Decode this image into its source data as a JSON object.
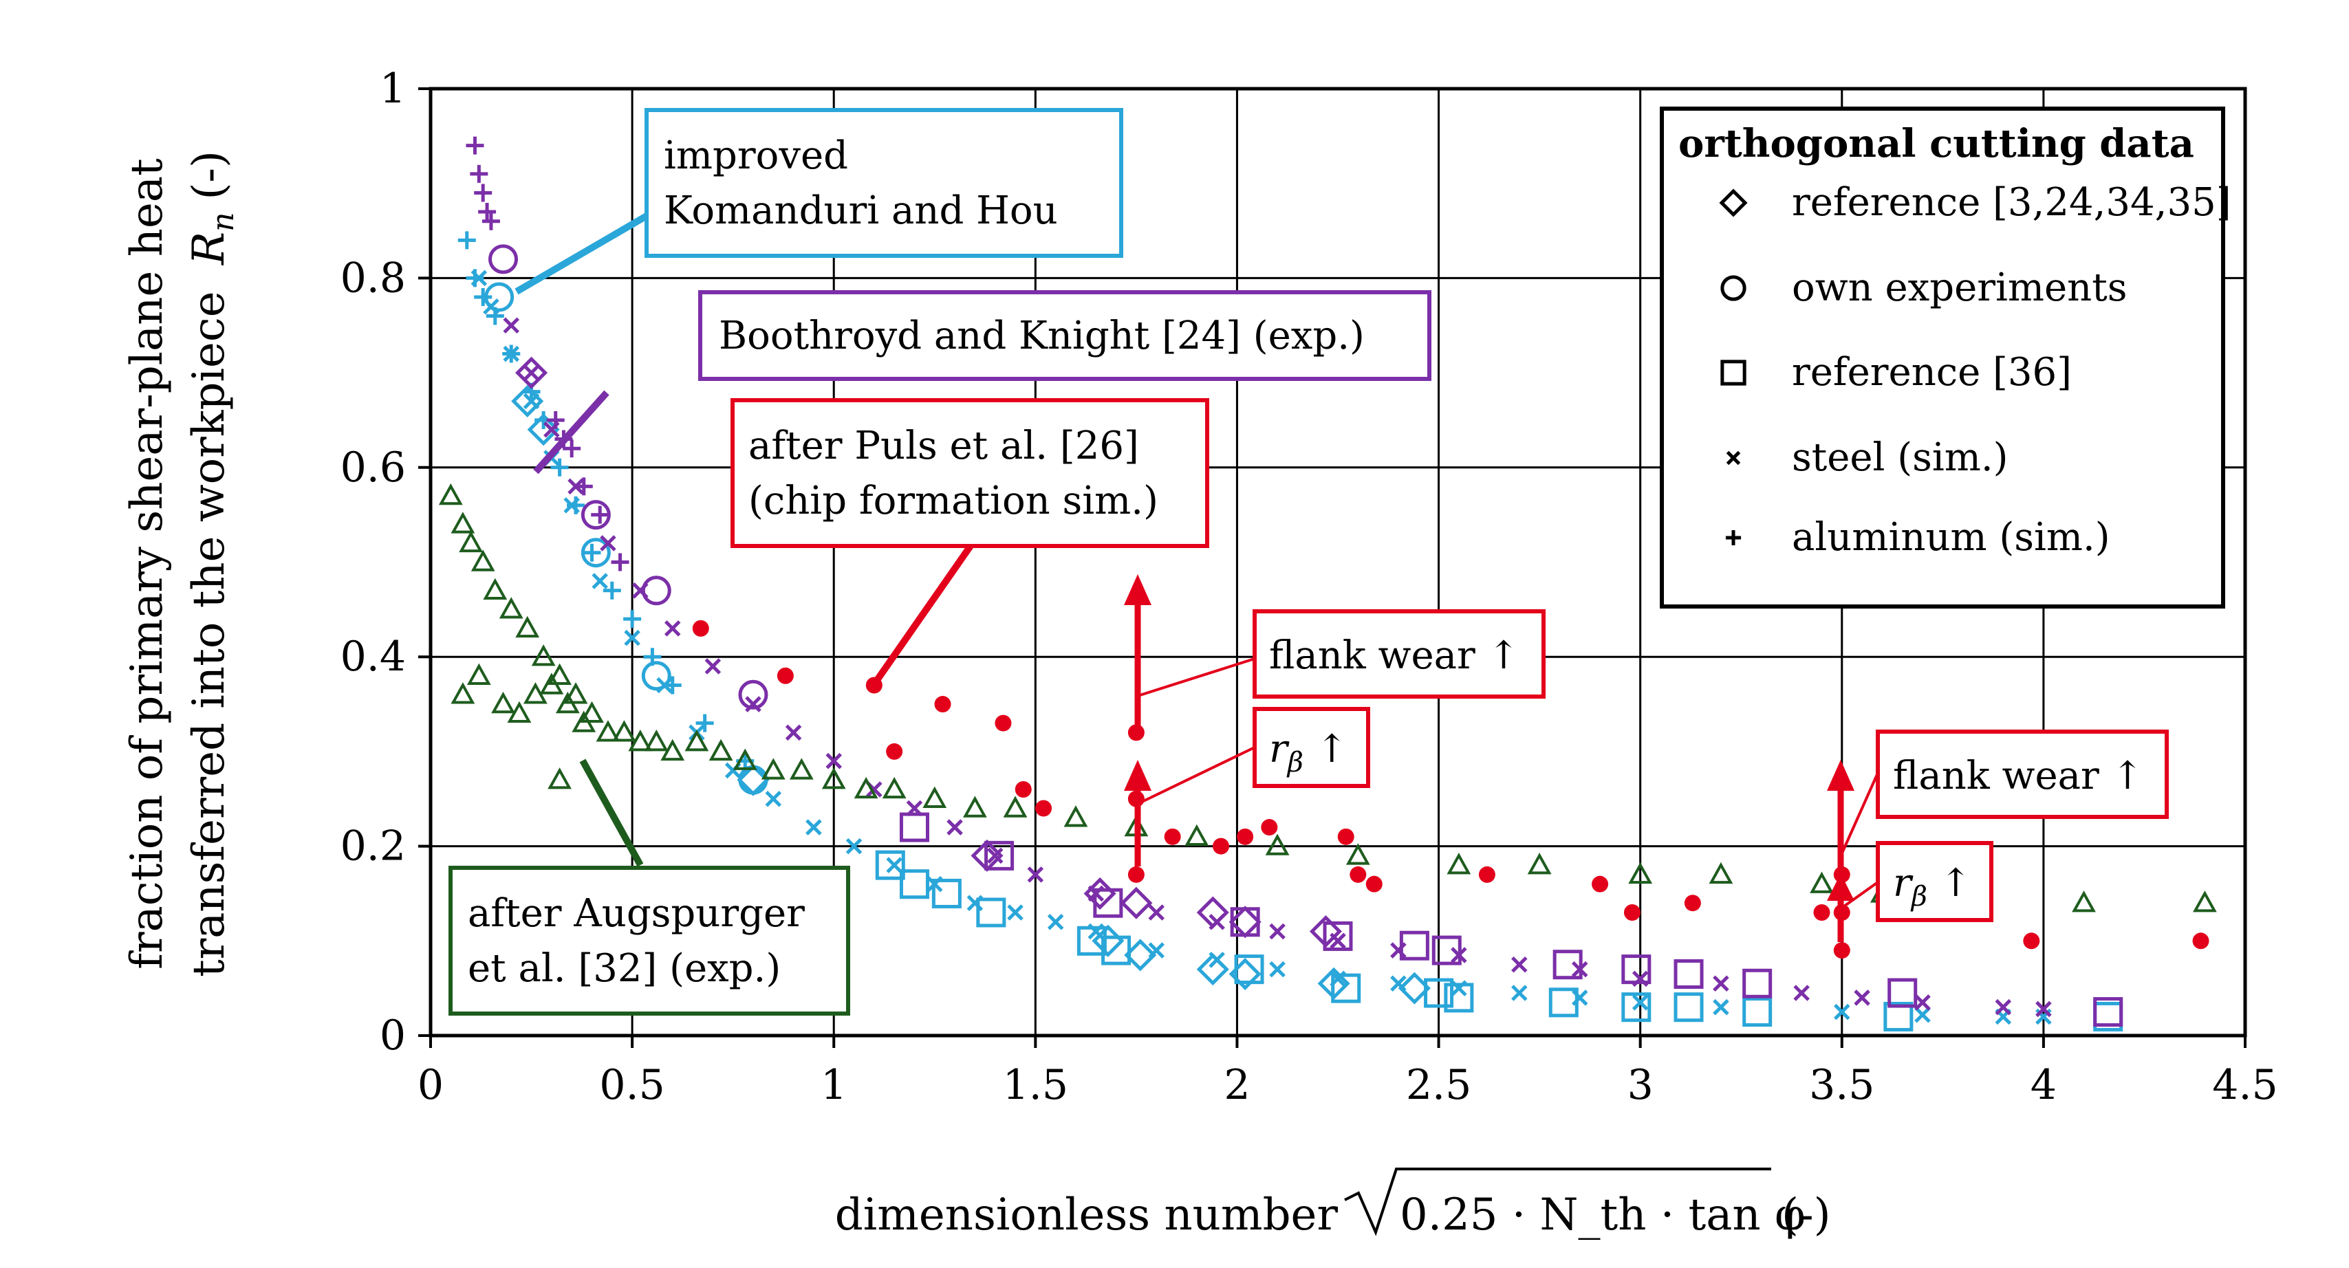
{
  "chart_data": {
    "type": "scatter",
    "xlabel": "dimensionless number",
    "xlabel_suffix": "(-)",
    "xlabel_formula": "0.25 · N_th · tan φ",
    "ylabel_line1": "fraction of primary shear-plane heat",
    "ylabel_line2": "transferred into the workpiece",
    "ylabel_sym": "R",
    "ylabel_sub": "n",
    "ylabel_unit": "(-)",
    "xlim": [
      0,
      4.5
    ],
    "ylim": [
      0,
      1
    ],
    "x_ticks": [
      0,
      0.5,
      1,
      1.5,
      2,
      2.5,
      3,
      3.5,
      4,
      4.5
    ],
    "y_ticks": [
      0,
      0.2,
      0.4,
      0.6,
      0.8,
      1
    ],
    "x_tick_labels": [
      "0",
      "0.5",
      "1",
      "1.5",
      "2",
      "2.5",
      "3",
      "3.5",
      "4",
      "4.5"
    ],
    "y_tick_labels": [
      "0",
      "0.2",
      "0.4",
      "0.6",
      "0.8",
      "1"
    ],
    "grid": true,
    "colors": {
      "blue": "#2aa6d9",
      "purple": "#7b2fa8",
      "red": "#e3001b",
      "green": "#1e5c1e"
    },
    "legend": {
      "title": "orthogonal cutting data",
      "position": "top-right",
      "entries": [
        {
          "marker": "diamond",
          "label": "reference [3,24,34,35]"
        },
        {
          "marker": "circle",
          "label": "own experiments"
        },
        {
          "marker": "square",
          "label": "reference [36]"
        },
        {
          "marker": "x",
          "label": "steel (sim.)"
        },
        {
          "marker": "plus",
          "label": "aluminum (sim.)"
        }
      ]
    },
    "annotations": {
      "komanduri": {
        "line1": "improved",
        "line2": "Komanduri and Hou"
      },
      "boothroyd": {
        "text": "Boothroyd and Knight [24] (exp.)"
      },
      "puls": {
        "line1": "after Puls et al. [26]",
        "line2": "(chip formation sim.)"
      },
      "augspurger": {
        "line1": "after Augspurger",
        "line2": "et al. [32] (exp.)"
      },
      "flank1": {
        "text": "flank wear ↑"
      },
      "r1": {
        "sym": "r",
        "sub": "β",
        "arrow": "↑"
      },
      "flank2": {
        "text": "flank wear ↑"
      },
      "r2": {
        "sym": "r",
        "sub": "β",
        "arrow": "↑"
      }
    },
    "series": [
      {
        "name": "improved Komanduri and Hou - steel (sim.)",
        "color": "blue",
        "marker": "x",
        "x": [
          0.12,
          0.15,
          0.2,
          0.25,
          0.3,
          0.35,
          0.42,
          0.5,
          0.58,
          0.66,
          0.75,
          0.85,
          0.95,
          1.05,
          1.15,
          1.25,
          1.35,
          1.45,
          1.55,
          1.65,
          1.8,
          1.95,
          2.1,
          2.25,
          2.4,
          2.55,
          2.7,
          2.85,
          3.0,
          3.2,
          3.5,
          3.7,
          3.9,
          4.0
        ],
        "y": [
          0.8,
          0.77,
          0.72,
          0.67,
          0.61,
          0.56,
          0.48,
          0.42,
          0.37,
          0.32,
          0.28,
          0.25,
          0.22,
          0.2,
          0.18,
          0.16,
          0.14,
          0.13,
          0.12,
          0.11,
          0.09,
          0.08,
          0.07,
          0.06,
          0.055,
          0.05,
          0.045,
          0.04,
          0.035,
          0.03,
          0.025,
          0.022,
          0.02,
          0.02
        ]
      },
      {
        "name": "improved Komanduri and Hou - aluminum (sim.)",
        "color": "blue",
        "marker": "plus",
        "x": [
          0.09,
          0.11,
          0.13,
          0.16,
          0.2,
          0.25,
          0.28,
          0.32,
          0.36,
          0.4,
          0.45,
          0.5,
          0.55,
          0.6,
          0.68,
          0.78
        ],
        "y": [
          0.84,
          0.8,
          0.78,
          0.76,
          0.72,
          0.68,
          0.65,
          0.6,
          0.56,
          0.51,
          0.47,
          0.44,
          0.4,
          0.37,
          0.33,
          0.29
        ]
      },
      {
        "name": "improved Komanduri and Hou - reference [3,24,34,35]",
        "color": "blue",
        "marker": "diamond",
        "x": [
          0.24,
          0.28,
          0.8,
          1.68,
          1.76,
          1.94,
          2.02,
          2.24,
          2.44
        ],
        "y": [
          0.67,
          0.64,
          0.27,
          0.1,
          0.085,
          0.07,
          0.065,
          0.055,
          0.05
        ]
      },
      {
        "name": "improved Komanduri and Hou - own experiments",
        "color": "blue",
        "marker": "circle",
        "x": [
          0.17,
          0.41,
          0.56,
          0.8
        ],
        "y": [
          0.78,
          0.51,
          0.38,
          0.27
        ]
      },
      {
        "name": "improved Komanduri and Hou - reference [36]",
        "color": "blue",
        "marker": "square",
        "x": [
          1.14,
          1.2,
          1.28,
          1.39,
          1.64,
          1.7,
          2.03,
          2.27,
          2.5,
          2.55,
          2.81,
          2.99,
          3.12,
          3.29,
          3.64,
          4.16
        ],
        "y": [
          0.18,
          0.16,
          0.15,
          0.13,
          0.1,
          0.09,
          0.07,
          0.05,
          0.045,
          0.04,
          0.035,
          0.03,
          0.03,
          0.025,
          0.02,
          0.02
        ]
      },
      {
        "name": "Boothroyd and Knight - steel (sim.)",
        "color": "purple",
        "marker": "x",
        "x": [
          0.2,
          0.25,
          0.3,
          0.36,
          0.44,
          0.52,
          0.6,
          0.7,
          0.8,
          0.9,
          1.0,
          1.1,
          1.2,
          1.3,
          1.4,
          1.5,
          1.65,
          1.8,
          1.95,
          2.1,
          2.25,
          2.4,
          2.55,
          2.7,
          2.85,
          3.0,
          3.2,
          3.4,
          3.55,
          3.7,
          3.9,
          4.0
        ],
        "y": [
          0.75,
          0.7,
          0.64,
          0.58,
          0.52,
          0.47,
          0.43,
          0.39,
          0.35,
          0.32,
          0.29,
          0.26,
          0.24,
          0.22,
          0.19,
          0.17,
          0.15,
          0.13,
          0.12,
          0.11,
          0.1,
          0.09,
          0.085,
          0.075,
          0.07,
          0.06,
          0.055,
          0.045,
          0.04,
          0.035,
          0.03,
          0.028
        ]
      },
      {
        "name": "Boothroyd and Knight - aluminum (sim.)",
        "color": "purple",
        "marker": "plus",
        "x": [
          0.11,
          0.12,
          0.13,
          0.14,
          0.15,
          0.31,
          0.33,
          0.35,
          0.38,
          0.42,
          0.47
        ],
        "y": [
          0.94,
          0.91,
          0.89,
          0.87,
          0.86,
          0.65,
          0.63,
          0.62,
          0.58,
          0.55,
          0.5
        ]
      },
      {
        "name": "Boothroyd and Knight - reference [3,24,34,35]",
        "color": "purple",
        "marker": "diamond",
        "x": [
          0.25,
          1.38,
          1.66,
          1.75,
          1.94,
          2.02,
          2.22
        ],
        "y": [
          0.7,
          0.19,
          0.15,
          0.14,
          0.13,
          0.12,
          0.11
        ]
      },
      {
        "name": "Boothroyd and Knight - own experiments",
        "color": "purple",
        "marker": "circle",
        "x": [
          0.18,
          0.41,
          0.56,
          0.8
        ],
        "y": [
          0.82,
          0.55,
          0.47,
          0.36
        ]
      },
      {
        "name": "Boothroyd and Knight - reference [36]",
        "color": "purple",
        "marker": "square",
        "x": [
          1.2,
          1.41,
          1.68,
          2.02,
          2.25,
          2.44,
          2.52,
          2.82,
          2.99,
          3.12,
          3.29,
          3.65,
          4.16
        ],
        "y": [
          0.22,
          0.19,
          0.14,
          0.12,
          0.105,
          0.095,
          0.09,
          0.075,
          0.07,
          0.065,
          0.055,
          0.045,
          0.025
        ]
      },
      {
        "name": "after Puls et al. [26] (chip formation sim.)",
        "color": "red",
        "marker": "dot",
        "x": [
          0.67,
          0.88,
          1.1,
          1.15,
          1.27,
          1.42,
          1.47,
          1.52,
          1.75,
          1.75,
          1.75,
          1.84,
          1.96,
          2.02,
          2.08,
          2.27,
          2.3,
          2.34,
          2.62,
          2.9,
          2.98,
          3.13,
          3.45,
          3.5,
          3.5,
          3.5,
          3.97,
          4.39
        ],
        "y": [
          0.43,
          0.38,
          0.37,
          0.3,
          0.35,
          0.33,
          0.26,
          0.24,
          0.32,
          0.25,
          0.17,
          0.21,
          0.2,
          0.21,
          0.22,
          0.21,
          0.17,
          0.16,
          0.17,
          0.16,
          0.13,
          0.14,
          0.13,
          0.17,
          0.13,
          0.09,
          0.1,
          0.1
        ]
      },
      {
        "name": "after Augspurger et al. [32] (exp.)",
        "color": "green",
        "marker": "triangle",
        "x": [
          0.05,
          0.08,
          0.1,
          0.13,
          0.16,
          0.2,
          0.24,
          0.28,
          0.32,
          0.36,
          0.4,
          0.44,
          0.48,
          0.52,
          0.56,
          0.6,
          0.66,
          0.72,
          0.78,
          0.85,
          0.92,
          1.0,
          1.08,
          1.15,
          1.25,
          1.35,
          1.45,
          1.6,
          1.75,
          1.9,
          2.1,
          2.3,
          2.55,
          2.75,
          3.0,
          3.2,
          3.45,
          3.6,
          4.1,
          4.4,
          0.08,
          0.12,
          0.18,
          0.22,
          0.26,
          0.3,
          0.34,
          0.38,
          0.32
        ],
        "y": [
          0.57,
          0.54,
          0.52,
          0.5,
          0.47,
          0.45,
          0.43,
          0.4,
          0.38,
          0.36,
          0.34,
          0.32,
          0.32,
          0.31,
          0.31,
          0.3,
          0.31,
          0.3,
          0.29,
          0.28,
          0.28,
          0.27,
          0.26,
          0.26,
          0.25,
          0.24,
          0.24,
          0.23,
          0.22,
          0.21,
          0.2,
          0.19,
          0.18,
          0.18,
          0.17,
          0.17,
          0.16,
          0.15,
          0.14,
          0.14,
          0.36,
          0.38,
          0.35,
          0.34,
          0.36,
          0.37,
          0.35,
          0.33,
          0.27
        ]
      }
    ]
  }
}
